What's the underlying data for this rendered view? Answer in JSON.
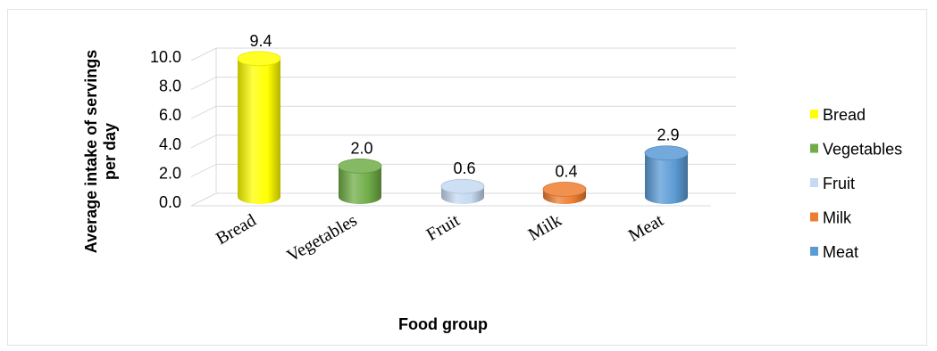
{
  "chart_data": {
    "type": "bar",
    "style": "3d-cylinder",
    "categories": [
      "Bread",
      "Vegetables",
      "Fruit",
      "Milk",
      "Meat"
    ],
    "values": [
      9.4,
      2.0,
      0.6,
      0.4,
      2.9
    ],
    "value_labels": [
      "9.4",
      "2.0",
      "0.6",
      "0.4",
      "2.9"
    ],
    "colors": [
      "#ffff00",
      "#70ad47",
      "#c5d9f1",
      "#ed7d31",
      "#5b9bd5"
    ],
    "ylabel_line1": "Average intake of servings",
    "ylabel_line2": "per day",
    "xlabel": "Food group",
    "ylim": [
      0,
      10
    ],
    "yticks": [
      "0.0",
      "2.0",
      "4.0",
      "6.0",
      "8.0",
      "10.0"
    ],
    "grid": true,
    "legend": {
      "placement": "right",
      "entries": [
        "Bread",
        "Vegetables",
        "Fruit",
        "Milk",
        "Meat"
      ]
    }
  }
}
